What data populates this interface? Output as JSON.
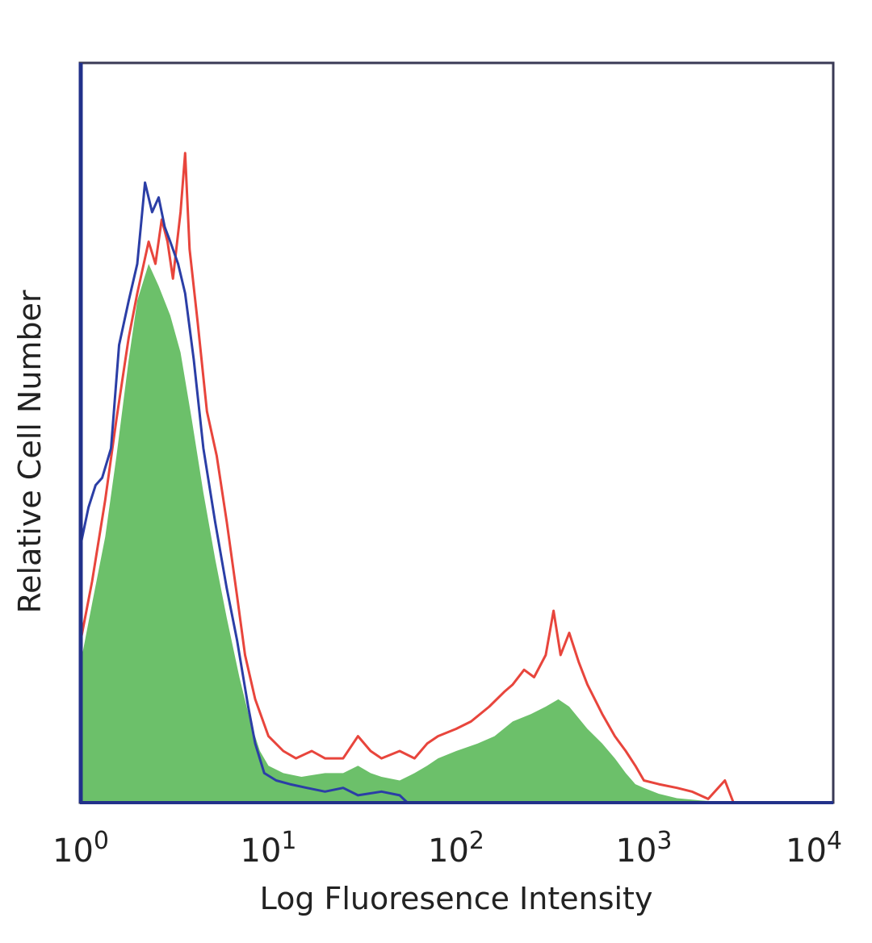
{
  "chart_data": {
    "type": "area",
    "title": "",
    "xlabel": "Log Fluoresence Intensity",
    "ylabel": "Relative Cell Number",
    "x_scale": "log",
    "xlim": [
      1,
      10000
    ],
    "ylim": [
      0,
      100
    ],
    "grid": false,
    "legend": "none",
    "x_ticks": [
      {
        "value": 1,
        "base": "10",
        "exp": "0"
      },
      {
        "value": 10,
        "base": "10",
        "exp": "1"
      },
      {
        "value": 100,
        "base": "10",
        "exp": "2"
      },
      {
        "value": 1000,
        "base": "10",
        "exp": "3"
      },
      {
        "value": 10000,
        "base": "10",
        "exp": "4"
      }
    ],
    "series": [
      {
        "style": "filled",
        "color": "#6cc06a",
        "points": [
          [
            1,
            19
          ],
          [
            1.15,
            27
          ],
          [
            1.35,
            36
          ],
          [
            1.55,
            47
          ],
          [
            1.8,
            60
          ],
          [
            2.0,
            68
          ],
          [
            2.3,
            73
          ],
          [
            2.6,
            70
          ],
          [
            3.0,
            66
          ],
          [
            3.4,
            61
          ],
          [
            3.9,
            52
          ],
          [
            4.5,
            42
          ],
          [
            5.2,
            33
          ],
          [
            6.0,
            25
          ],
          [
            7.0,
            17
          ],
          [
            8.0,
            11
          ],
          [
            9.0,
            7
          ],
          [
            10,
            5
          ],
          [
            12,
            4
          ],
          [
            15,
            3.5
          ],
          [
            20,
            4
          ],
          [
            25,
            4
          ],
          [
            30,
            5
          ],
          [
            35,
            4
          ],
          [
            40,
            3.5
          ],
          [
            50,
            3
          ],
          [
            60,
            4
          ],
          [
            70,
            5
          ],
          [
            80,
            6
          ],
          [
            100,
            7
          ],
          [
            130,
            8
          ],
          [
            160,
            9
          ],
          [
            200,
            11
          ],
          [
            250,
            12
          ],
          [
            300,
            13
          ],
          [
            350,
            14
          ],
          [
            400,
            13
          ],
          [
            500,
            10
          ],
          [
            600,
            8
          ],
          [
            700,
            6
          ],
          [
            800,
            4
          ],
          [
            900,
            2.5
          ],
          [
            1000,
            2
          ],
          [
            1200,
            1.2
          ],
          [
            1500,
            0.6
          ],
          [
            2000,
            0.3
          ],
          [
            3000,
            0
          ]
        ]
      },
      {
        "style": "line",
        "color": "#e8453c",
        "points": [
          [
            1,
            22
          ],
          [
            1.15,
            30
          ],
          [
            1.35,
            41
          ],
          [
            1.55,
            52
          ],
          [
            1.8,
            63
          ],
          [
            2.0,
            69
          ],
          [
            2.3,
            76
          ],
          [
            2.5,
            73
          ],
          [
            2.7,
            79
          ],
          [
            2.9,
            76
          ],
          [
            3.1,
            71
          ],
          [
            3.4,
            80
          ],
          [
            3.6,
            88
          ],
          [
            3.8,
            75
          ],
          [
            4.2,
            65
          ],
          [
            4.7,
            53
          ],
          [
            5.3,
            47
          ],
          [
            6.0,
            38
          ],
          [
            6.8,
            28
          ],
          [
            7.5,
            20
          ],
          [
            8.5,
            14
          ],
          [
            10,
            9
          ],
          [
            12,
            7
          ],
          [
            14,
            6
          ],
          [
            17,
            7
          ],
          [
            20,
            6
          ],
          [
            25,
            6
          ],
          [
            30,
            9
          ],
          [
            35,
            7
          ],
          [
            40,
            6
          ],
          [
            50,
            7
          ],
          [
            60,
            6
          ],
          [
            70,
            8
          ],
          [
            80,
            9
          ],
          [
            100,
            10
          ],
          [
            120,
            11
          ],
          [
            150,
            13
          ],
          [
            180,
            15
          ],
          [
            200,
            16
          ],
          [
            230,
            18
          ],
          [
            260,
            17
          ],
          [
            300,
            20
          ],
          [
            330,
            26
          ],
          [
            360,
            20
          ],
          [
            400,
            23
          ],
          [
            450,
            19
          ],
          [
            500,
            16
          ],
          [
            600,
            12
          ],
          [
            700,
            9
          ],
          [
            800,
            7
          ],
          [
            900,
            5
          ],
          [
            1000,
            3
          ],
          [
            1200,
            2.5
          ],
          [
            1500,
            2
          ],
          [
            1800,
            1.5
          ],
          [
            2200,
            0.5
          ],
          [
            2700,
            3
          ],
          [
            3000,
            0
          ]
        ]
      },
      {
        "style": "line",
        "color": "#2b3ea6",
        "points": [
          [
            1,
            35
          ],
          [
            1.1,
            40
          ],
          [
            1.2,
            43
          ],
          [
            1.3,
            44
          ],
          [
            1.45,
            48
          ],
          [
            1.6,
            62
          ],
          [
            1.8,
            68
          ],
          [
            2.0,
            73
          ],
          [
            2.2,
            84
          ],
          [
            2.4,
            80
          ],
          [
            2.6,
            82
          ],
          [
            2.8,
            78
          ],
          [
            3.0,
            76
          ],
          [
            3.3,
            73
          ],
          [
            3.6,
            69
          ],
          [
            4.0,
            60
          ],
          [
            4.5,
            48
          ],
          [
            5.2,
            38
          ],
          [
            6.0,
            29
          ],
          [
            6.8,
            22
          ],
          [
            7.8,
            13
          ],
          [
            8.5,
            8
          ],
          [
            9.5,
            4
          ],
          [
            11,
            3
          ],
          [
            13,
            2.5
          ],
          [
            16,
            2
          ],
          [
            20,
            1.5
          ],
          [
            25,
            2
          ],
          [
            30,
            1
          ],
          [
            40,
            1.5
          ],
          [
            50,
            1
          ],
          [
            55,
            0
          ]
        ]
      }
    ]
  }
}
